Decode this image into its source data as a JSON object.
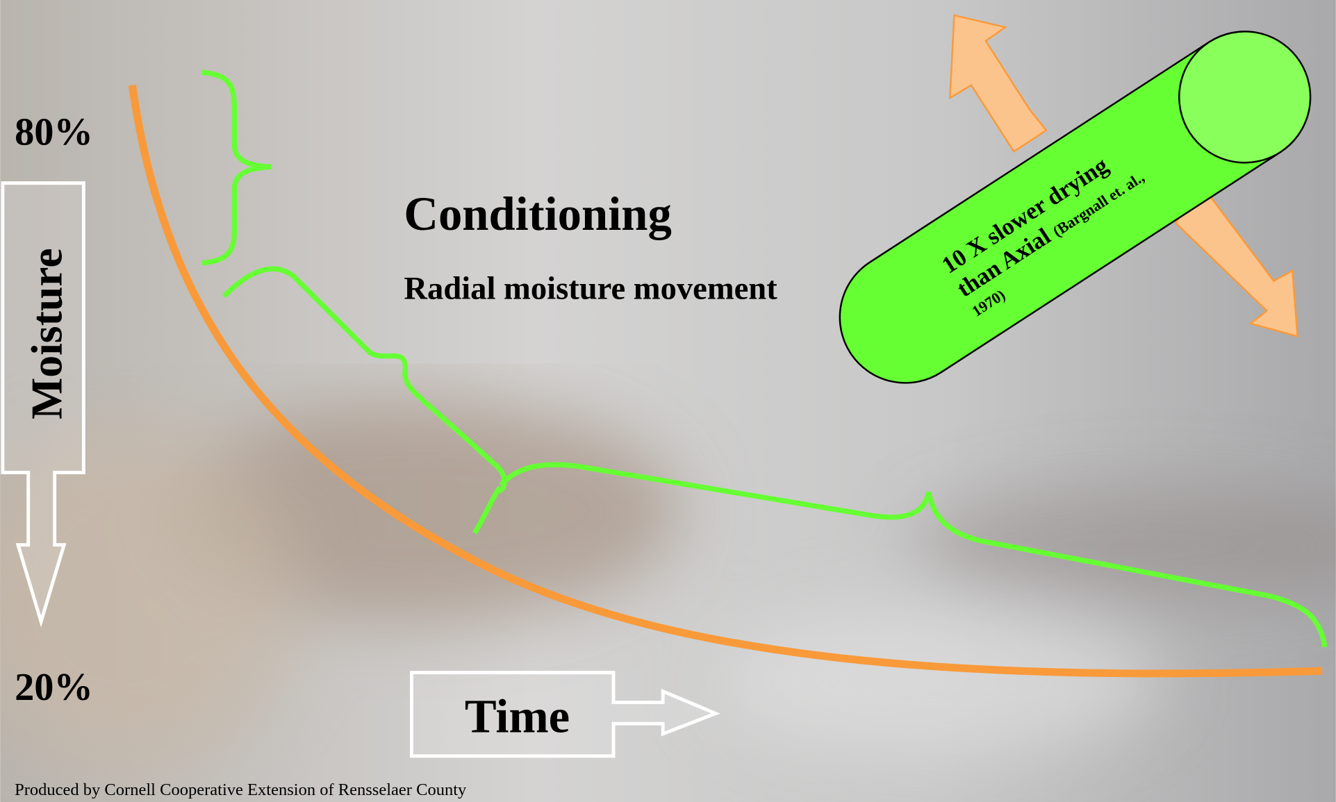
{
  "labels": {
    "high": "80%",
    "low": "20%",
    "y_axis": "Moisture",
    "x_axis": "Time"
  },
  "heading": {
    "title": "Conditioning",
    "subtitle": "Radial moisture movement"
  },
  "cylinder": {
    "line1": "10 X slower drying",
    "line2": "than Axial",
    "citation1": "(Bargnall et. al.,",
    "citation2": "1970)"
  },
  "footer": "Produced by Cornell Cooperative Extension of Rensselaer County"
}
